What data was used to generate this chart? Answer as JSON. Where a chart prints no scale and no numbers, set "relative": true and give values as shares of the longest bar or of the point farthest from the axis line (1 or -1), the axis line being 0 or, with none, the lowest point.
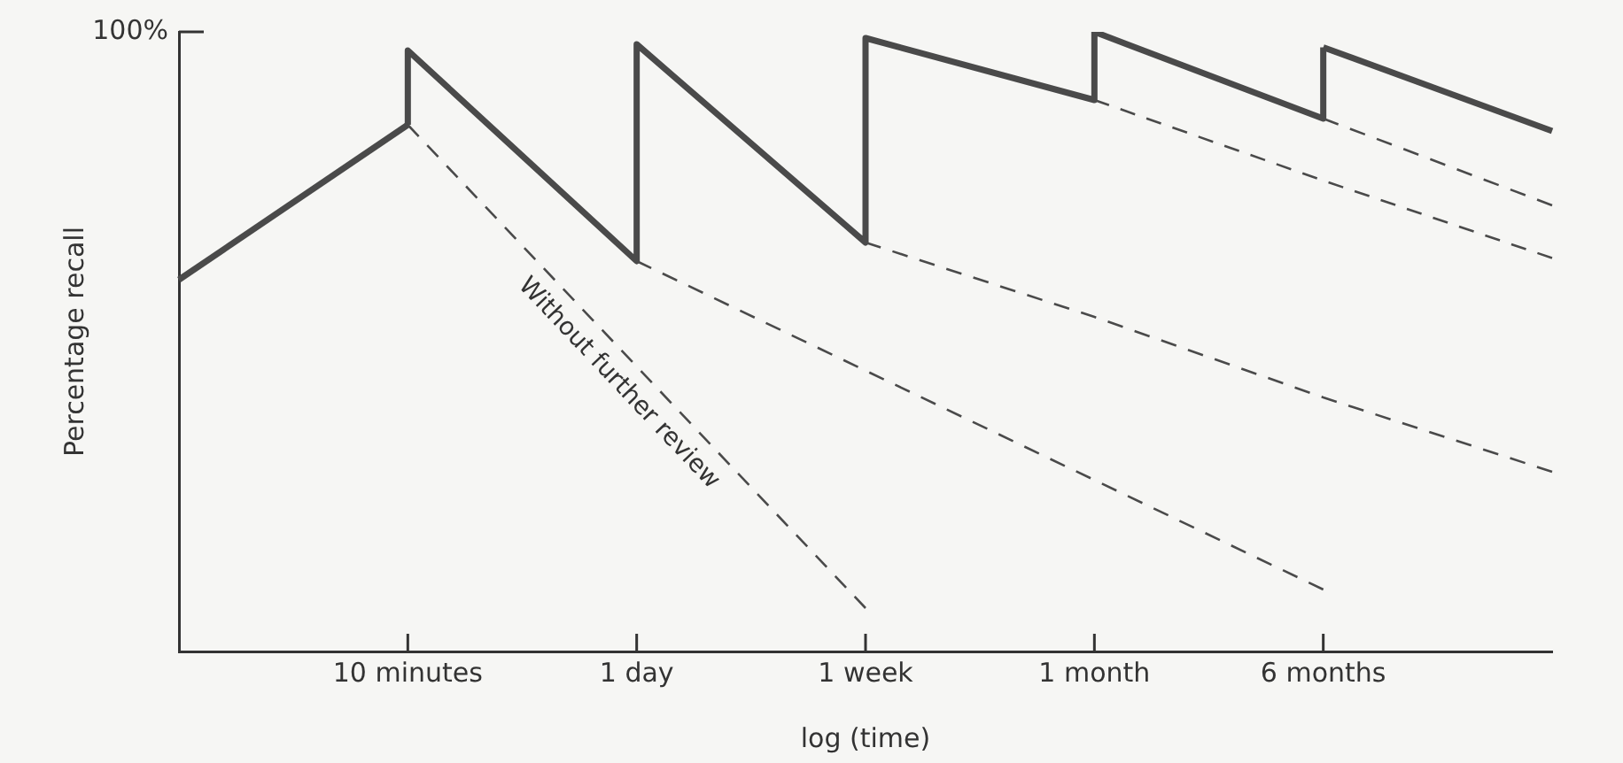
{
  "chart_data": {
    "type": "line",
    "relative": true,
    "xlabel": "log (time)",
    "ylabel": "Percentage recall",
    "categories": [
      null,
      "10 minutes",
      "1 day",
      "1 week",
      "1 month",
      "6 months",
      null
    ],
    "grid": false,
    "legend": false,
    "marker": "none",
    "annotations": [
      "100%",
      "Without further review"
    ],
    "series": [
      {
        "color": "#4a4a4a",
        "line_style": "solid",
        "values": [
          0.6,
          0.85,
          null,
          null,
          null,
          null,
          null
        ]
      },
      {
        "color": "#4a4a4a",
        "line_style": "solid",
        "x": [
          "10 minutes",
          "10 minutes",
          "1 day",
          "1 day",
          "1 week",
          "1 week",
          "1 month",
          "1 month",
          "6 months",
          "6 months"
        ],
        "values": [
          0.85,
          0.97,
          0.63,
          0.98,
          0.66,
          0.99,
          0.89,
          1,
          0.86,
          0.975
        ]
      },
      {
        "color": "#4a4a4a",
        "line_style": "solid",
        "values": [
          null,
          null,
          null,
          null,
          null,
          0.975,
          0.84
        ]
      },
      {
        "color": "#4a4a4a",
        "line_style": "dashed",
        "x": [
          "10 minutes",
          "1 week"
        ],
        "values": [
          0.85,
          0.07
        ]
      },
      {
        "color": "#4a4a4a",
        "line_style": "dashed",
        "x": [
          "1 day",
          "6 months"
        ],
        "values": [
          0.63,
          0.1
        ]
      },
      {
        "color": "#4a4a4a",
        "line_style": "dashed",
        "values": [
          null,
          null,
          null,
          0.66,
          0.54,
          0.41,
          0.29
        ]
      },
      {
        "color": "#4a4a4a",
        "line_style": "dashed",
        "values": [
          null,
          null,
          null,
          null,
          0.89,
          0.76,
          0.635
        ]
      },
      {
        "color": "#4a4a4a",
        "line_style": "dashed",
        "values": [
          null,
          null,
          null,
          null,
          null,
          0.86,
          0.72
        ]
      }
    ]
  }
}
